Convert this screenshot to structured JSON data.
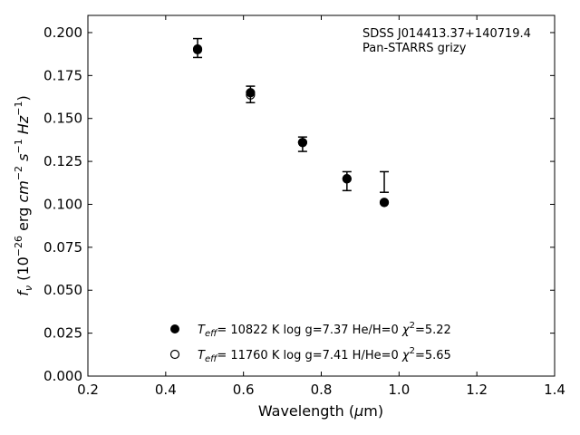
{
  "chart_data": {
    "type": "scatter",
    "xlabel": "Wavelength (μm)",
    "ylabel": "f_ν (10^−26 erg cm^−2 s^−1 Hz^−1)",
    "xlim": [
      0.2,
      1.4
    ],
    "ylim": [
      0.0,
      0.21
    ],
    "x_ticks": [
      "0.2",
      "0.4",
      "0.6",
      "0.8",
      "1.0",
      "1.2",
      "1.4"
    ],
    "y_ticks": [
      "0.000",
      "0.025",
      "0.050",
      "0.075",
      "0.100",
      "0.125",
      "0.150",
      "0.175",
      "0.200"
    ],
    "grid": false,
    "annotations": [
      "SDSS J014413.37+140719.4",
      "Pan-STARRS grizy"
    ],
    "observed": {
      "x": [
        0.482,
        0.618,
        0.752,
        0.866,
        0.962
      ],
      "y": [
        0.191,
        0.164,
        0.135,
        0.1135,
        0.113
      ],
      "yerr": [
        0.0055,
        0.0048,
        0.0042,
        0.0055,
        0.006
      ]
    },
    "series": [
      {
        "name": "T_eff= 10822 K  log g=7.37  He/H=0  χ²=5.22",
        "marker": "filled",
        "x": [
          0.482,
          0.618,
          0.752,
          0.866,
          0.962
        ],
        "y": [
          0.19,
          0.165,
          0.136,
          0.115,
          0.101
        ]
      },
      {
        "name": "T_eff= 11760 K  log g=7.41  H/He=0  χ²=5.65",
        "marker": "open",
        "x": [
          0.482,
          0.618,
          0.752,
          0.866,
          0.962
        ],
        "y": [
          0.1905,
          0.1637,
          0.136,
          0.1148,
          0.1012
        ]
      }
    ],
    "legend_placement": "lower-center",
    "colors": {
      "marker": "#000000",
      "axis": "#000000",
      "background": "#ffffff"
    }
  }
}
